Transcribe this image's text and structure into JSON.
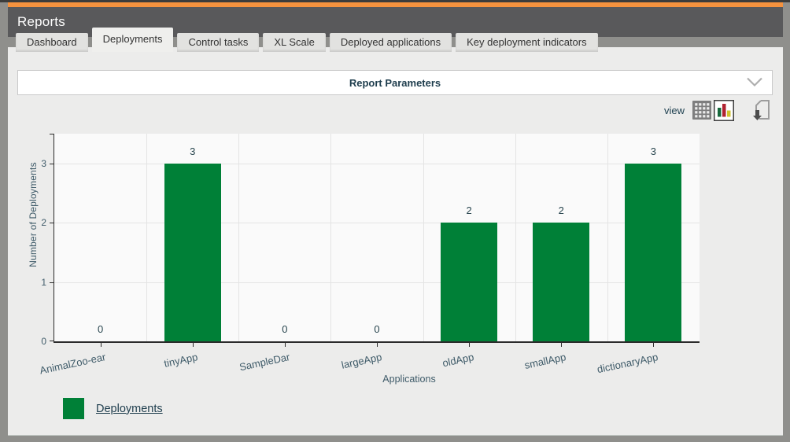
{
  "window": {
    "title": "Reports"
  },
  "tabs": [
    {
      "label": "Dashboard",
      "active": false
    },
    {
      "label": "Deployments",
      "active": true
    },
    {
      "label": "Control tasks",
      "active": false
    },
    {
      "label": "XL Scale",
      "active": false
    },
    {
      "label": "Deployed applications",
      "active": false
    },
    {
      "label": "Key deployment indicators",
      "active": false
    }
  ],
  "report_parameters": {
    "label": "Report Parameters"
  },
  "toolbar": {
    "view_label": "view",
    "icons": [
      {
        "name": "table-view-icon",
        "selected": false
      },
      {
        "name": "chart-view-icon",
        "selected": true
      },
      {
        "name": "export-download-icon",
        "selected": false
      }
    ]
  },
  "chart_data": {
    "type": "bar",
    "categories": [
      "AnimalZoo-ear",
      "tinyApp",
      "SampleDar",
      "largeApp",
      "oldApp",
      "smallApp",
      "dictionaryApp"
    ],
    "series": [
      {
        "name": "Deployments",
        "color": "#008037",
        "values": [
          0,
          3,
          0,
          0,
          2,
          2,
          3
        ]
      }
    ],
    "xlabel": "Applications",
    "ylabel": "Number of Deployments",
    "yticks": [
      0,
      1,
      2,
      3
    ],
    "ylim": [
      0,
      3.5
    ],
    "grid": true,
    "legend": {
      "position": "bottom-left",
      "entries": [
        {
          "label": "Deployments",
          "color": "#008037"
        }
      ]
    }
  },
  "colors": {
    "accent_orange": "#F5923E",
    "header_gray": "#59595B",
    "bar_green": "#008037",
    "axis_text": "#3F5B69",
    "value_text": "#28454E",
    "heading_text": "#1E3D4D"
  }
}
